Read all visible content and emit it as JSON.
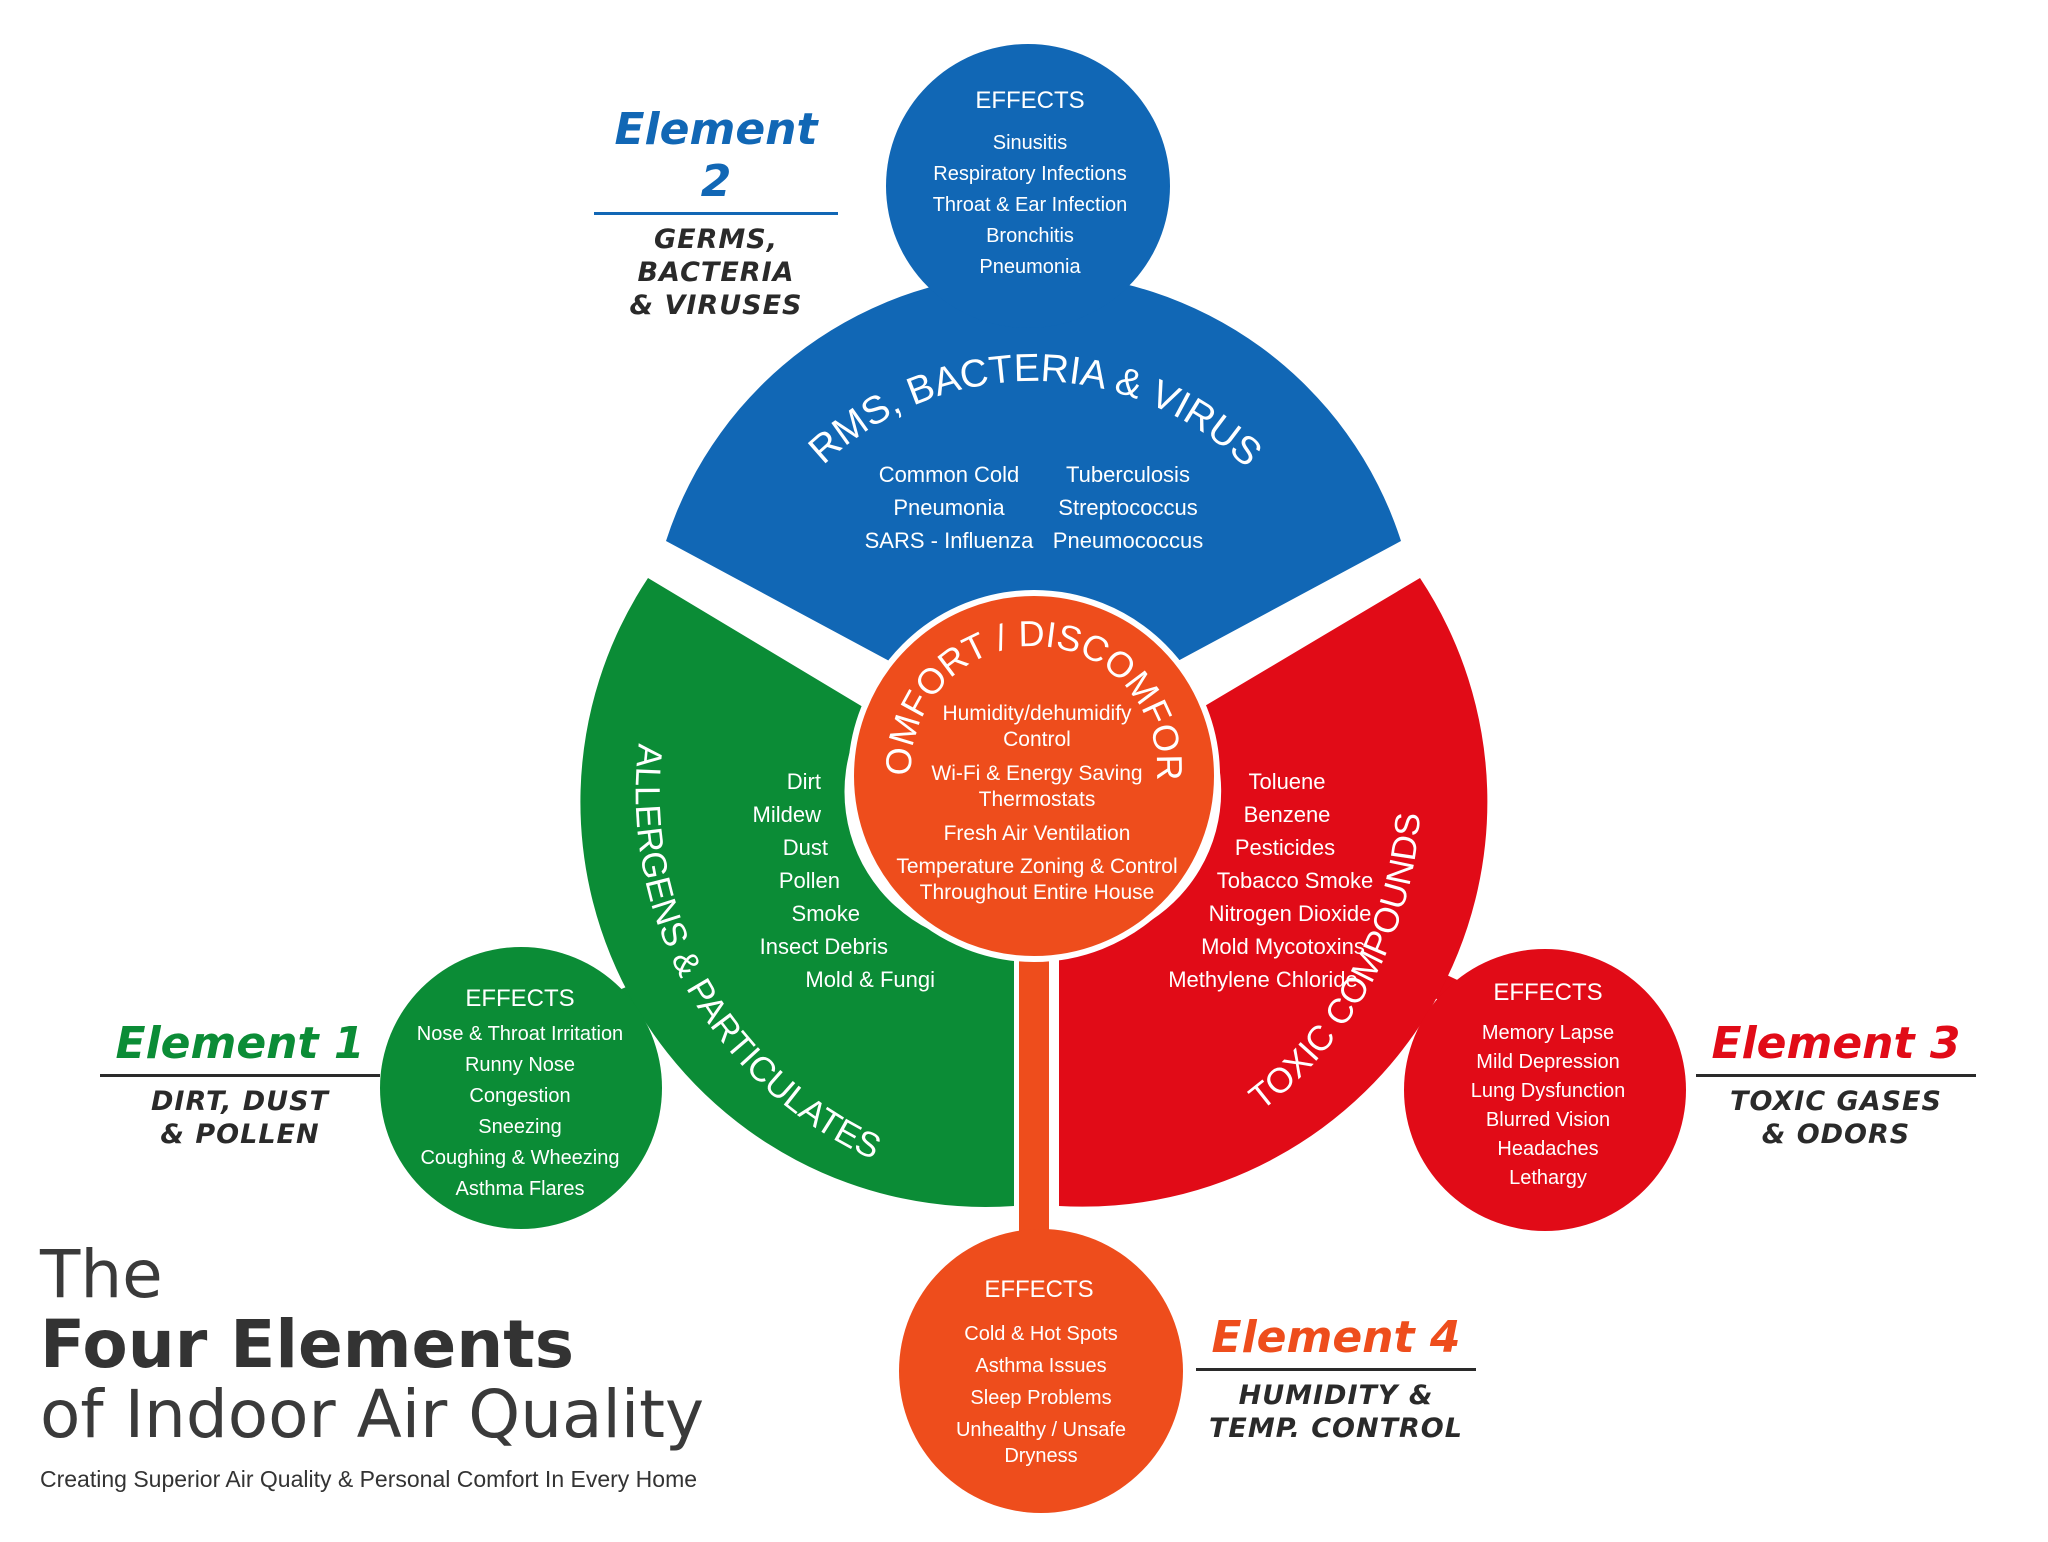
{
  "colors": {
    "blue": "#1167b5",
    "green": "#0b8c36",
    "red": "#e10b17",
    "orange": "#ee4d1c",
    "dark_text": "#2a2a2a"
  },
  "center": {
    "title": "COMFORT / DISCOMFORT",
    "items": [
      "Humidity/dehumidify",
      "Control",
      "Wi-Fi & Energy Saving",
      "Thermostats",
      "Fresh Air Ventilation",
      "Temperature Zoning & Control",
      "Throughout Entire House"
    ]
  },
  "segments": {
    "germs": {
      "title": "GERMS, BACTERIA & VIRUSES",
      "col1": [
        "Common Cold",
        "Pneumonia",
        "SARS - Influenza"
      ],
      "col2": [
        "Tuberculosis",
        "Streptococcus",
        "Pneumococcus"
      ]
    },
    "allergens": {
      "title": "ALLERGENS & PARTICULATES",
      "items": [
        "Dirt",
        "Mildew",
        "Dust",
        "Pollen",
        "Smoke",
        "Insect Debris",
        "Mold & Fungi"
      ]
    },
    "toxic": {
      "title": "TOXIC COMPOUNDS",
      "items": [
        "Toluene",
        "Benzene",
        "Pesticides",
        "Tobacco Smoke",
        "Nitrogen Dioxide",
        "Mold Mycotoxins",
        "Methylene Chloride"
      ]
    }
  },
  "effects": {
    "label": "EFFECTS",
    "e1": [
      "Nose & Throat Irritation",
      "Runny Nose",
      "Congestion",
      "Sneezing",
      "Coughing & Wheezing",
      "Asthma Flares"
    ],
    "e2": [
      "Sinusitis",
      "Respiratory Infections",
      "Throat & Ear Infection",
      "Bronchitis",
      "Pneumonia"
    ],
    "e3": [
      "Memory Lapse",
      "Mild Depression",
      "Lung Dysfunction",
      "Blurred Vision",
      "Headaches",
      "Lethargy"
    ],
    "e4": [
      "Cold & Hot Spots",
      "Asthma Issues",
      "Sleep Problems",
      "Unhealthy / Unsafe",
      "Dryness"
    ]
  },
  "elements": {
    "e1": {
      "number": "Element 1",
      "line1": "DIRT, DUST",
      "line2": "& POLLEN"
    },
    "e2": {
      "number": "Element 2",
      "line1": "GERMS, BACTERIA",
      "line2": "& VIRUSES"
    },
    "e3": {
      "number": "Element 3",
      "line1": "TOXIC GASES",
      "line2": "& ODORS"
    },
    "e4": {
      "number": "Element 4",
      "line1": "HUMIDITY &",
      "line2": "TEMP. CONTROL"
    }
  },
  "heading": {
    "line1": "The",
    "line2": "Four Elements",
    "line3": "of Indoor Air Quality",
    "tagline": "Creating Superior Air Quality & Personal Comfort In Every Home"
  }
}
